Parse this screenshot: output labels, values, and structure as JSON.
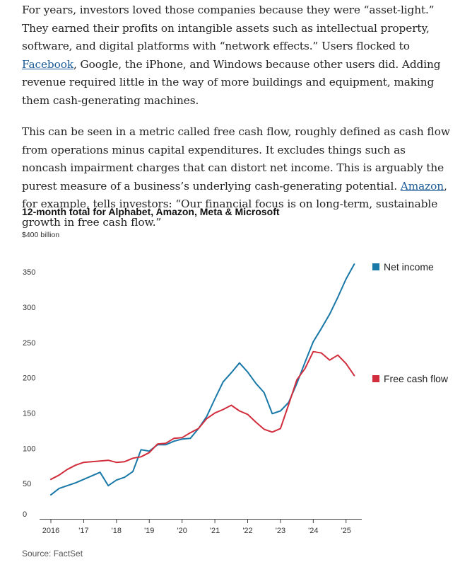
{
  "article": {
    "p1": {
      "before": "For years, investors loved those companies because they were “asset-light.” They earned their profits on intangible assets such as intellectual property, software, and digital platforms with “network effects.” Users flocked to ",
      "link": "Facebook",
      "after": ", Google, the iPhone, and Windows because other users did. Adding revenue required little in the way of more buildings and equipment, making them cash-generating machines."
    },
    "p2": {
      "before": "This can be seen in a metric called free cash flow, roughly defined as cash flow from operations minus capital expenditures. It excludes things such as noncash impairment charges that can distort net income. This is arguably the purest measure of a business’s underlying cash-generating potential. ",
      "link": "Amazon",
      "after": ", for example, tells investors: “Our financial focus is on long-term, sustainable growth in free cash flow.”"
    }
  },
  "chart_data": {
    "type": "line",
    "title": "12-month total for Alphabet, Amazon, Meta & Microsoft",
    "unit_label": "$400 billion",
    "source": "Source: FactSet",
    "ylim": [
      0,
      400
    ],
    "yticks": [
      {
        "value": 50,
        "label": "50"
      },
      {
        "value": 100,
        "label": "100"
      },
      {
        "value": 150,
        "label": "150"
      },
      {
        "value": 200,
        "label": "200"
      },
      {
        "value": 250,
        "label": "250"
      },
      {
        "value": 300,
        "label": "300"
      },
      {
        "value": 350,
        "label": "350"
      },
      {
        "value": 0,
        "label": "0"
      }
    ],
    "xlim": [
      2016,
      2025.35
    ],
    "xticks": [
      {
        "value": 2016,
        "label": "2016"
      },
      {
        "value": 2017,
        "label": "'17"
      },
      {
        "value": 2018,
        "label": "'18"
      },
      {
        "value": 2019,
        "label": "'19"
      },
      {
        "value": 2020,
        "label": "'20"
      },
      {
        "value": 2021,
        "label": "'21"
      },
      {
        "value": 2022,
        "label": "'22"
      },
      {
        "value": 2023,
        "label": "'23"
      },
      {
        "value": 2024,
        "label": "'24"
      },
      {
        "value": 2025,
        "label": "'25"
      }
    ],
    "grid": false,
    "legend_placement": "right, at line ends",
    "series": [
      {
        "name": "Net income",
        "color": "#1878a8",
        "x": [
          2016.0,
          2016.25,
          2016.5,
          2016.75,
          2017.0,
          2017.25,
          2017.5,
          2017.75,
          2018.0,
          2018.25,
          2018.5,
          2018.75,
          2019.0,
          2019.25,
          2019.5,
          2019.75,
          2020.0,
          2020.25,
          2020.5,
          2020.75,
          2021.0,
          2021.25,
          2021.5,
          2021.75,
          2022.0,
          2022.25,
          2022.5,
          2022.75,
          2023.0,
          2023.25,
          2023.5,
          2023.75,
          2024.0,
          2024.25,
          2024.5,
          2024.75,
          2025.0,
          2025.25
        ],
        "y": [
          34,
          43,
          47,
          51,
          56,
          61,
          66,
          47,
          55,
          59,
          67,
          98,
          96,
          105,
          105,
          110,
          113,
          114,
          128,
          145,
          170,
          194,
          207,
          221,
          208,
          192,
          179,
          149,
          153,
          165,
          192,
          222,
          251,
          270,
          290,
          314,
          340,
          361
        ]
      },
      {
        "name": "Free cash flow",
        "color": "#d22d3c",
        "x": [
          2016.0,
          2016.25,
          2016.5,
          2016.75,
          2017.0,
          2017.25,
          2017.5,
          2017.75,
          2018.0,
          2018.25,
          2018.5,
          2018.75,
          2019.0,
          2019.25,
          2019.5,
          2019.75,
          2020.0,
          2020.25,
          2020.5,
          2020.75,
          2021.0,
          2021.25,
          2021.5,
          2021.75,
          2022.0,
          2022.25,
          2022.5,
          2022.75,
          2023.0,
          2023.25,
          2023.5,
          2023.75,
          2024.0,
          2024.25,
          2024.5,
          2024.75,
          2025.0,
          2025.25
        ],
        "y": [
          56,
          62,
          70,
          76,
          80,
          81,
          82,
          83,
          80,
          81,
          86,
          88,
          94,
          106,
          107,
          114,
          115,
          122,
          128,
          142,
          150,
          155,
          161,
          153,
          148,
          137,
          127,
          123,
          128,
          162,
          197,
          213,
          237,
          235,
          225,
          232,
          220,
          203
        ]
      }
    ]
  }
}
